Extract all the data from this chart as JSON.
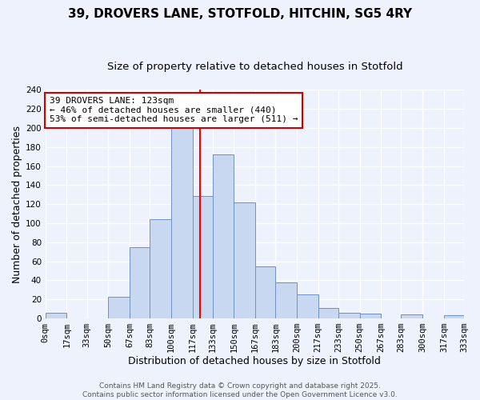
{
  "title": "39, DROVERS LANE, STOTFOLD, HITCHIN, SG5 4RY",
  "subtitle": "Size of property relative to detached houses in Stotfold",
  "xlabel": "Distribution of detached houses by size in Stotfold",
  "ylabel": "Number of detached properties",
  "bin_edges": [
    0,
    17,
    33,
    50,
    67,
    83,
    100,
    117,
    133,
    150,
    167,
    183,
    200,
    217,
    233,
    250,
    267,
    283,
    300,
    317,
    333
  ],
  "bin_labels": [
    "0sqm",
    "17sqm",
    "33sqm",
    "50sqm",
    "67sqm",
    "83sqm",
    "100sqm",
    "117sqm",
    "133sqm",
    "150sqm",
    "167sqm",
    "183sqm",
    "200sqm",
    "217sqm",
    "233sqm",
    "250sqm",
    "267sqm",
    "283sqm",
    "300sqm",
    "317sqm",
    "333sqm"
  ],
  "counts": [
    6,
    0,
    0,
    23,
    75,
    104,
    200,
    129,
    172,
    122,
    55,
    38,
    25,
    11,
    6,
    5,
    0,
    4,
    0,
    3
  ],
  "bar_color": "#c8d8f0",
  "bar_edge_color": "#7090c0",
  "property_line_x": 123,
  "property_line_color": "red",
  "annotation_title": "39 DROVERS LANE: 123sqm",
  "annotation_line1": "← 46% of detached houses are smaller (440)",
  "annotation_line2": "53% of semi-detached houses are larger (511) →",
  "annotation_box_facecolor": "#ffffff",
  "annotation_box_edgecolor": "#cc0000",
  "ylim": [
    0,
    240
  ],
  "yticks": [
    0,
    20,
    40,
    60,
    80,
    100,
    120,
    140,
    160,
    180,
    200,
    220,
    240
  ],
  "footer_line1": "Contains HM Land Registry data © Crown copyright and database right 2025.",
  "footer_line2": "Contains public sector information licensed under the Open Government Licence v3.0.",
  "background_color": "#eef2fc",
  "grid_color": "#ffffff",
  "title_fontsize": 11,
  "subtitle_fontsize": 9.5,
  "axis_label_fontsize": 9,
  "tick_fontsize": 7.5,
  "annotation_fontsize": 8,
  "footer_fontsize": 6.5
}
